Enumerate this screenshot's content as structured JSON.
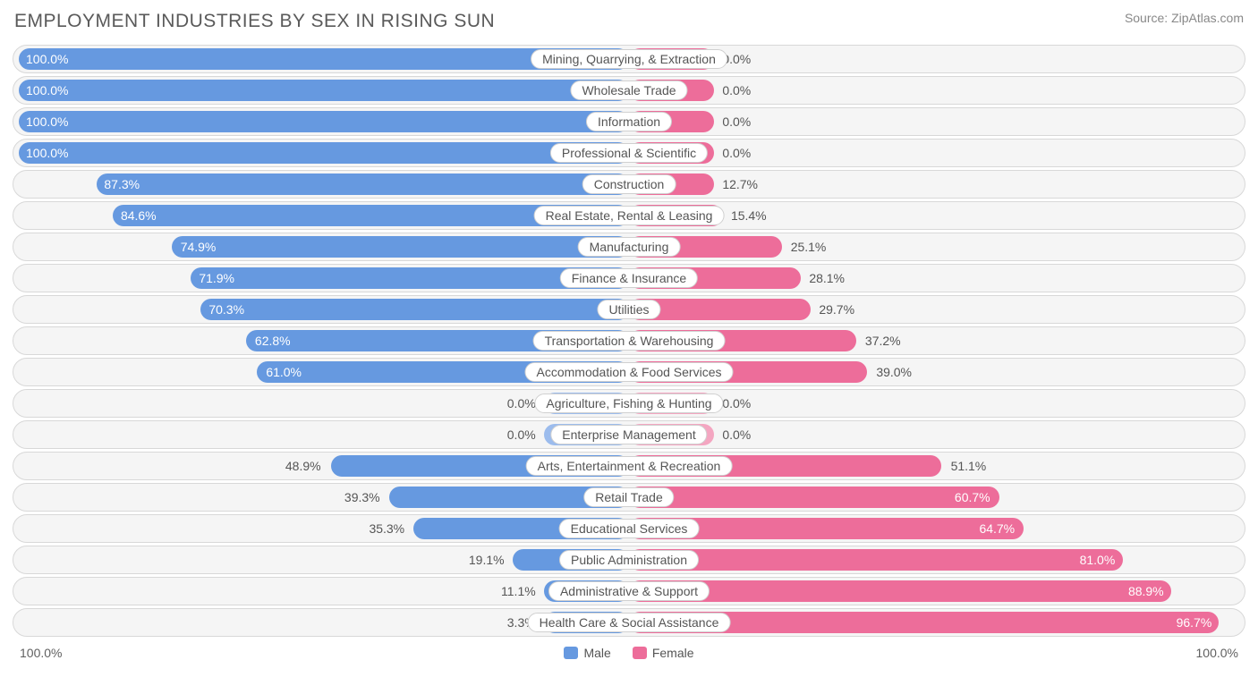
{
  "title": "EMPLOYMENT INDUSTRIES BY SEX IN RISING SUN",
  "source": "Source: ZipAtlas.com",
  "colors": {
    "male_full": "#6699e0",
    "male_light": "#9cbced",
    "female_full": "#ed6d9a",
    "female_light": "#f4a6c1",
    "row_bg": "#f5f5f5",
    "row_border": "#d8d8d8",
    "text": "#555555",
    "title_text": "#5a5a5a",
    "source_text": "#888888",
    "label_bg": "#ffffff"
  },
  "chart": {
    "type": "diverging-bar",
    "axis_left": "100.0%",
    "axis_right": "100.0%",
    "min_bar_pct": 14,
    "rows": [
      {
        "label": "Mining, Quarrying, & Extraction",
        "male": 100.0,
        "female": 0.0,
        "neutral": false
      },
      {
        "label": "Wholesale Trade",
        "male": 100.0,
        "female": 0.0,
        "neutral": false
      },
      {
        "label": "Information",
        "male": 100.0,
        "female": 0.0,
        "neutral": false
      },
      {
        "label": "Professional & Scientific",
        "male": 100.0,
        "female": 0.0,
        "neutral": false
      },
      {
        "label": "Construction",
        "male": 87.3,
        "female": 12.7,
        "neutral": false
      },
      {
        "label": "Real Estate, Rental & Leasing",
        "male": 84.6,
        "female": 15.4,
        "neutral": false
      },
      {
        "label": "Manufacturing",
        "male": 74.9,
        "female": 25.1,
        "neutral": false
      },
      {
        "label": "Finance & Insurance",
        "male": 71.9,
        "female": 28.1,
        "neutral": false
      },
      {
        "label": "Utilities",
        "male": 70.3,
        "female": 29.7,
        "neutral": false
      },
      {
        "label": "Transportation & Warehousing",
        "male": 62.8,
        "female": 37.2,
        "neutral": false
      },
      {
        "label": "Accommodation & Food Services",
        "male": 61.0,
        "female": 39.0,
        "neutral": false
      },
      {
        "label": "Agriculture, Fishing & Hunting",
        "male": 0.0,
        "female": 0.0,
        "neutral": true
      },
      {
        "label": "Enterprise Management",
        "male": 0.0,
        "female": 0.0,
        "neutral": true
      },
      {
        "label": "Arts, Entertainment & Recreation",
        "male": 48.9,
        "female": 51.1,
        "neutral": false
      },
      {
        "label": "Retail Trade",
        "male": 39.3,
        "female": 60.7,
        "neutral": false
      },
      {
        "label": "Educational Services",
        "male": 35.3,
        "female": 64.7,
        "neutral": false
      },
      {
        "label": "Public Administration",
        "male": 19.1,
        "female": 81.0,
        "neutral": false
      },
      {
        "label": "Administrative & Support",
        "male": 11.1,
        "female": 88.9,
        "neutral": false
      },
      {
        "label": "Health Care & Social Assistance",
        "male": 3.3,
        "female": 96.7,
        "neutral": false
      }
    ]
  },
  "legend": {
    "male": "Male",
    "female": "Female"
  }
}
